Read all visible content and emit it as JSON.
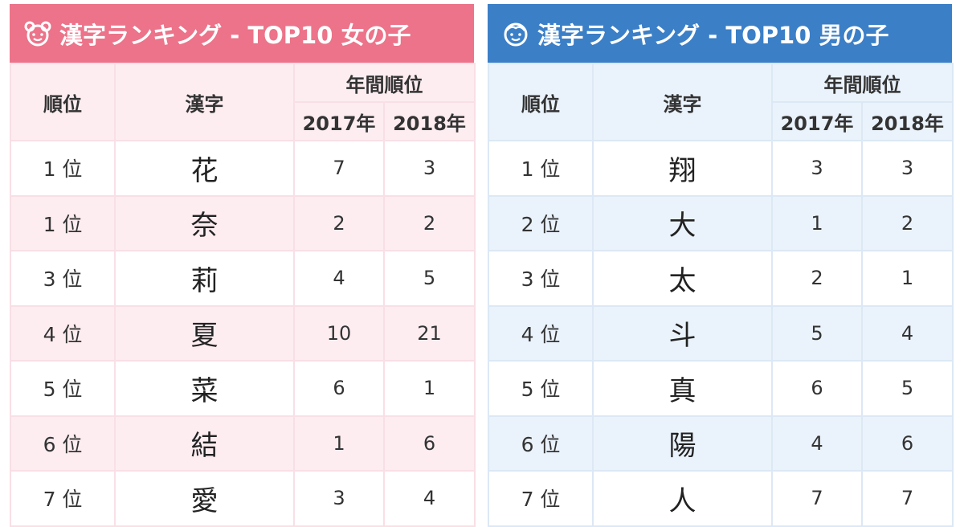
{
  "girls": {
    "title": "漢字ランキング - TOP10 女の子",
    "headers": {
      "rank": "順位",
      "kanji": "漢字",
      "annual": "年間順位",
      "y2017": "2017年",
      "y2018": "2018年"
    },
    "rows": [
      {
        "rank": "1 位",
        "kanji": "花",
        "y2017": "7",
        "y2018": "3"
      },
      {
        "rank": "1 位",
        "kanji": "奈",
        "y2017": "2",
        "y2018": "2"
      },
      {
        "rank": "3 位",
        "kanji": "莉",
        "y2017": "4",
        "y2018": "5"
      },
      {
        "rank": "4 位",
        "kanji": "夏",
        "y2017": "10",
        "y2018": "21"
      },
      {
        "rank": "5 位",
        "kanji": "菜",
        "y2017": "6",
        "y2018": "1"
      },
      {
        "rank": "6 位",
        "kanji": "結",
        "y2017": "1",
        "y2018": "6"
      },
      {
        "rank": "7 位",
        "kanji": "愛",
        "y2017": "3",
        "y2018": "4"
      }
    ]
  },
  "boys": {
    "title": "漢字ランキング - TOP10 男の子",
    "headers": {
      "rank": "順位",
      "kanji": "漢字",
      "annual": "年間順位",
      "y2017": "2017年",
      "y2018": "2018年"
    },
    "rows": [
      {
        "rank": "1 位",
        "kanji": "翔",
        "y2017": "3",
        "y2018": "3"
      },
      {
        "rank": "2 位",
        "kanji": "大",
        "y2017": "1",
        "y2018": "2"
      },
      {
        "rank": "3 位",
        "kanji": "太",
        "y2017": "2",
        "y2018": "1"
      },
      {
        "rank": "4 位",
        "kanji": "斗",
        "y2017": "5",
        "y2018": "4"
      },
      {
        "rank": "5 位",
        "kanji": "真",
        "y2017": "6",
        "y2018": "5"
      },
      {
        "rank": "6 位",
        "kanji": "陽",
        "y2017": "4",
        "y2018": "6"
      },
      {
        "rank": "7 位",
        "kanji": "人",
        "y2017": "7",
        "y2018": "7"
      }
    ]
  },
  "icons": {
    "girls": "girl-face-icon",
    "boys": "boy-face-icon"
  },
  "colors": {
    "girls_header": "#ec7389",
    "girls_tint": "#fdedf1",
    "boys_header": "#3b7fc7",
    "boys_tint": "#eaf2fb"
  }
}
